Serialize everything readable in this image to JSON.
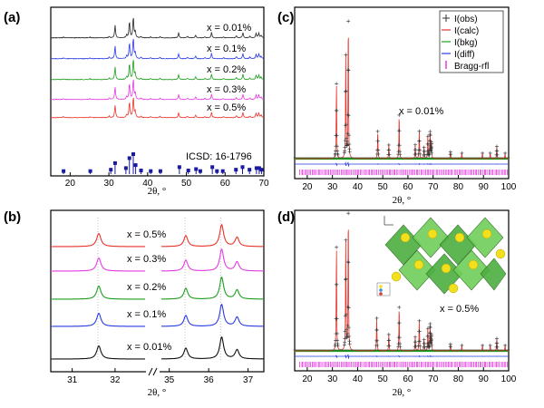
{
  "chart_data": [
    {
      "panel": "(a)",
      "type": "line",
      "xlabel": "2θ, °",
      "xlim": [
        15,
        70
      ],
      "xticks": [
        20,
        30,
        40,
        50,
        60,
        70
      ],
      "series": [
        {
          "name": "x = 0.5%",
          "color": "#e8332a"
        },
        {
          "name": "x = 0.3%",
          "color": "#e43ce0"
        },
        {
          "name": "x = 0.2%",
          "color": "#1d9e1d"
        },
        {
          "name": "x = 0.1%",
          "color": "#2a3be2"
        },
        {
          "name": "x = 0.01%",
          "color": "#222222"
        }
      ],
      "peaks": [
        {
          "x": 18.3,
          "h": 0.04
        },
        {
          "x": 25.1,
          "h": 0.04
        },
        {
          "x": 30.1,
          "h": 0.08
        },
        {
          "x": 31.6,
          "h": 0.62
        },
        {
          "x": 34.6,
          "h": 0.14
        },
        {
          "x": 35.3,
          "h": 0.78
        },
        {
          "x": 36.3,
          "h": 1.0
        },
        {
          "x": 36.8,
          "h": 0.3
        },
        {
          "x": 38.3,
          "h": 0.06
        },
        {
          "x": 40.8,
          "h": 0.05
        },
        {
          "x": 43.2,
          "h": 0.06
        },
        {
          "x": 48.0,
          "h": 0.24
        },
        {
          "x": 50.3,
          "h": 0.07
        },
        {
          "x": 52.4,
          "h": 0.13
        },
        {
          "x": 54.8,
          "h": 0.05
        },
        {
          "x": 56.5,
          "h": 0.26
        },
        {
          "x": 59.6,
          "h": 0.05
        },
        {
          "x": 62.9,
          "h": 0.1
        },
        {
          "x": 64.6,
          "h": 0.26
        },
        {
          "x": 66.4,
          "h": 0.08
        },
        {
          "x": 68.0,
          "h": 0.22
        },
        {
          "x": 68.7,
          "h": 0.24
        },
        {
          "x": 69.3,
          "h": 0.12
        }
      ],
      "reference": {
        "label": "ICSD: 16-1796",
        "sticks": [
          {
            "x": 18.3,
            "h": 0.15
          },
          {
            "x": 25.2,
            "h": 0.15
          },
          {
            "x": 30.5,
            "h": 0.22
          },
          {
            "x": 31.6,
            "h": 0.55
          },
          {
            "x": 34.4,
            "h": 0.3
          },
          {
            "x": 35.3,
            "h": 0.8
          },
          {
            "x": 36.3,
            "h": 1.0
          },
          {
            "x": 36.9,
            "h": 0.45
          },
          {
            "x": 38.3,
            "h": 0.18
          },
          {
            "x": 40.8,
            "h": 0.15
          },
          {
            "x": 43.3,
            "h": 0.15
          },
          {
            "x": 48.2,
            "h": 0.35
          },
          {
            "x": 50.5,
            "h": 0.18
          },
          {
            "x": 52.5,
            "h": 0.25
          },
          {
            "x": 53.6,
            "h": 0.15
          },
          {
            "x": 56.7,
            "h": 0.35
          },
          {
            "x": 57.9,
            "h": 0.15
          },
          {
            "x": 59.4,
            "h": 0.15
          },
          {
            "x": 62.8,
            "h": 0.22
          },
          {
            "x": 64.5,
            "h": 0.35
          },
          {
            "x": 66.3,
            "h": 0.22
          },
          {
            "x": 68.1,
            "h": 0.3
          },
          {
            "x": 68.8,
            "h": 0.3
          },
          {
            "x": 69.4,
            "h": 0.22
          }
        ]
      }
    },
    {
      "panel": "(b)",
      "type": "line",
      "xlabel": "2θ, °",
      "xlim_left": [
        30.5,
        32.7
      ],
      "xlim_right": [
        34.8,
        37.4
      ],
      "xticks_left": [
        31,
        32
      ],
      "xticks_right": [
        35,
        36,
        37
      ],
      "reference_lines": [
        31.6,
        35.4,
        36.3
      ],
      "series": [
        {
          "name": "x = 0.5%",
          "color": "#e8332a"
        },
        {
          "name": "x = 0.3%",
          "color": "#e43ce0"
        },
        {
          "name": "x = 0.2%",
          "color": "#1d9e1d"
        },
        {
          "name": "x = 0.1%",
          "color": "#2a3be2"
        },
        {
          "name": "x = 0.01%",
          "color": "#111111"
        }
      ],
      "peaks": [
        {
          "x": 31.62,
          "h": 0.6
        },
        {
          "x": 35.42,
          "h": 0.5
        },
        {
          "x": 36.33,
          "h": 1.0
        },
        {
          "x": 36.72,
          "h": 0.42
        }
      ]
    },
    {
      "panel": "(c)",
      "type": "scatter",
      "xlabel": "2θ, °",
      "xlim": [
        15,
        100
      ],
      "xticks": [
        20,
        30,
        40,
        50,
        60,
        70,
        80,
        90,
        100
      ],
      "annotation": "x = 0.01%",
      "legend": {
        "position": "top-right",
        "entries": [
          {
            "label": "I(obs)",
            "marker": "+",
            "color": "#333333"
          },
          {
            "label": "I(calc)",
            "marker": "line",
            "color": "#e8332a"
          },
          {
            "label": "I(bkg)",
            "marker": "line",
            "color": "#1d9e1d"
          },
          {
            "label": "I(diff)",
            "marker": "line",
            "color": "#2a3be2"
          },
          {
            "label": "Bragg-rfl",
            "marker": "tick",
            "color": "#e43ce0"
          }
        ]
      },
      "peaks": [
        {
          "x": 31.6,
          "h": 0.55
        },
        {
          "x": 35.3,
          "h": 0.75
        },
        {
          "x": 36.3,
          "h": 1.0
        },
        {
          "x": 48.0,
          "h": 0.2
        },
        {
          "x": 52.4,
          "h": 0.1
        },
        {
          "x": 56.5,
          "h": 0.32
        },
        {
          "x": 62.9,
          "h": 0.1
        },
        {
          "x": 64.5,
          "h": 0.2
        },
        {
          "x": 66.4,
          "h": 0.08
        },
        {
          "x": 67.9,
          "h": 0.16
        },
        {
          "x": 68.8,
          "h": 0.19
        },
        {
          "x": 69.3,
          "h": 0.11
        },
        {
          "x": 76.9,
          "h": 0.05
        },
        {
          "x": 81.4,
          "h": 0.04
        },
        {
          "x": 89.6,
          "h": 0.04
        },
        {
          "x": 92.7,
          "h": 0.04
        },
        {
          "x": 95.3,
          "h": 0.09
        },
        {
          "x": 98.6,
          "h": 0.04
        }
      ]
    },
    {
      "panel": "(d)",
      "type": "scatter",
      "xlabel": "2θ, °",
      "xlim": [
        15,
        100
      ],
      "xticks": [
        20,
        30,
        40,
        50,
        60,
        70,
        80,
        90,
        100
      ],
      "annotation": "x = 0.5%",
      "inset": "crystal structure",
      "peaks": [
        {
          "x": 31.6,
          "h": 0.76
        },
        {
          "x": 35.3,
          "h": 0.8
        },
        {
          "x": 36.3,
          "h": 1.0
        },
        {
          "x": 47.6,
          "h": 0.24
        },
        {
          "x": 52.4,
          "h": 0.12
        },
        {
          "x": 56.5,
          "h": 0.32
        },
        {
          "x": 62.9,
          "h": 0.1
        },
        {
          "x": 64.5,
          "h": 0.22
        },
        {
          "x": 66.4,
          "h": 0.08
        },
        {
          "x": 67.9,
          "h": 0.16
        },
        {
          "x": 68.8,
          "h": 0.19
        },
        {
          "x": 69.3,
          "h": 0.11
        },
        {
          "x": 76.9,
          "h": 0.05
        },
        {
          "x": 81.4,
          "h": 0.04
        },
        {
          "x": 89.6,
          "h": 0.04
        },
        {
          "x": 92.7,
          "h": 0.04
        },
        {
          "x": 95.3,
          "h": 0.09
        },
        {
          "x": 98.6,
          "h": 0.04
        }
      ]
    }
  ]
}
